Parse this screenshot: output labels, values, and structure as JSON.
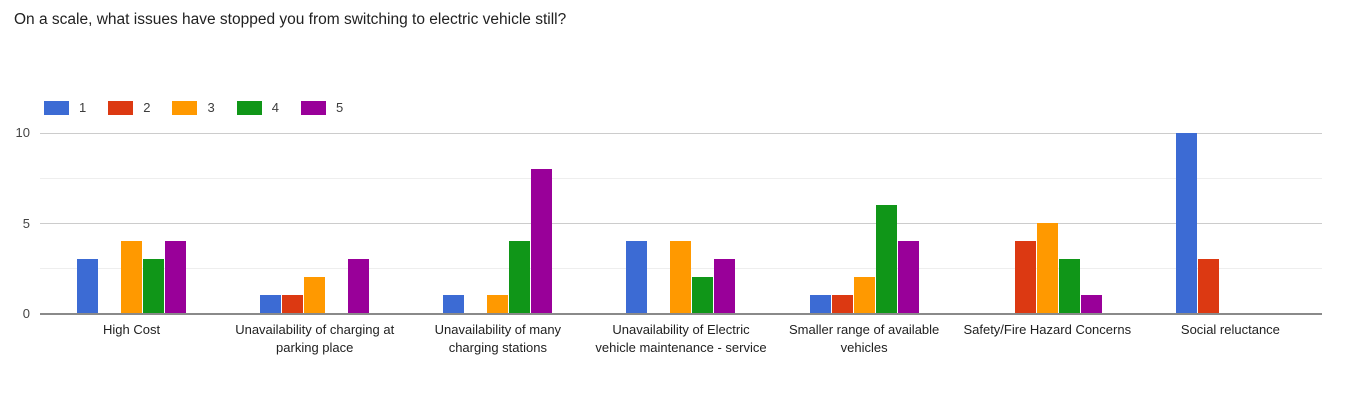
{
  "title": "On a scale, what issues have stopped you from switching to electric vehicle still?",
  "chart_data": {
    "type": "bar",
    "title": "On a scale, what issues have stopped you from switching to electric vehicle still?",
    "categories": [
      "High Cost",
      "Unavailability of charging at parking place",
      "Unavailability of many charging stations",
      "Unavailability of Electric vehicle maintenance - service",
      "Smaller range of available vehicles",
      "Safety/Fire Hazard Concerns",
      "Social reluctance"
    ],
    "series": [
      {
        "name": "1",
        "color": "#3c6bd4",
        "values": [
          3,
          1,
          1,
          4,
          1,
          0,
          10
        ]
      },
      {
        "name": "2",
        "color": "#dc3912",
        "values": [
          0,
          1,
          0,
          0,
          1,
          4,
          3
        ]
      },
      {
        "name": "3",
        "color": "#ff9900",
        "values": [
          4,
          2,
          1,
          4,
          2,
          5,
          0
        ]
      },
      {
        "name": "4",
        "color": "#109618",
        "values": [
          3,
          0,
          4,
          2,
          6,
          3,
          0
        ]
      },
      {
        "name": "5",
        "color": "#990099",
        "values": [
          4,
          3,
          8,
          3,
          4,
          1,
          0
        ]
      }
    ],
    "xlabel": "",
    "ylabel": "",
    "ylim": [
      0,
      10
    ],
    "yticks": [
      0,
      5,
      10
    ],
    "yticks_minor": [
      2.5,
      7.5
    ],
    "grid": true,
    "legend_position": "top-left",
    "colors": {
      "gridline_major": "#cccccc",
      "gridline_minor": "#eeeeee",
      "baseline": "#8a8a8a",
      "axis_tick_text": "#444444",
      "category_text": "#212121",
      "title_text": "#212121",
      "background": "#ffffff"
    }
  }
}
